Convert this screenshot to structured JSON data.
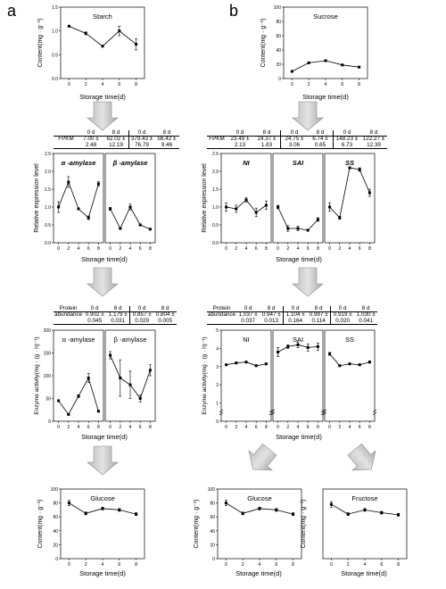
{
  "panels": {
    "a": "a",
    "b": "b"
  },
  "labels": {
    "content_axis": "Content(mg · g⁻¹)",
    "storage_axis": "Storage time(d)",
    "rel_expr_axis": "Relative expression level",
    "enzyme_axis": "Enzyme activity(mg · (g · h)⁻¹)",
    "fpkm": "FPKM",
    "protein": "Protein",
    "abundance": "abundance",
    "d0": "0 d",
    "d8": "8 d"
  },
  "tables": {
    "fpkm_a": [
      {
        "d0": "7.00 ±",
        "d0b": "2.48",
        "d8": "62.02 ±",
        "d8b": "12.19"
      },
      {
        "d0": "379.43 ±",
        "d0b": "76.79",
        "d8": "56.42 ±",
        "d8b": "9.46"
      }
    ],
    "fpkm_b": [
      {
        "d0": "23.49 ±",
        "d0b": "2.13",
        "d8": "24.37 ±",
        "d8b": "1.83"
      },
      {
        "d0": "24.75 ±",
        "d0b": "3.06",
        "d8": "6.74 ±",
        "d8b": "0.65"
      },
      {
        "d0": "148.23 ±",
        "d0b": "6.73",
        "d8": "122.27 ±",
        "d8b": "12.39"
      }
    ],
    "prot_a": [
      {
        "d0": "0.902 ±",
        "d0b": "0.045",
        "d8": "1.179 ±",
        "d8b": "0.031"
      },
      {
        "d0": "0.857 ±",
        "d0b": "0.029",
        "d8": "0.804 ±",
        "d8b": "0.005"
      }
    ],
    "prot_b": [
      {
        "d0": "1.037 ±",
        "d0b": "0.037",
        "d8": "0.947 ±",
        "d8b": "0.013"
      },
      {
        "d0": "1.104 ±",
        "d0b": "0.164",
        "d8": "0.997 ±",
        "d8b": "0.114"
      },
      {
        "d0": "0.919 ±",
        "d0b": "0.020",
        "d8": "1.030 ±",
        "d8b": "0.041"
      }
    ]
  },
  "chart_data": [
    {
      "id": "starch",
      "type": "line",
      "title": "Starch",
      "x": [
        0,
        2,
        4,
        6,
        8
      ],
      "values": [
        1.1,
        0.95,
        0.68,
        1.0,
        0.72
      ],
      "errors": [
        0.02,
        0.03,
        0.02,
        0.1,
        0.12
      ],
      "xlim": [
        -1,
        9
      ],
      "ylim": [
        0,
        1.5
      ],
      "yticks": [
        0,
        0.5,
        1,
        1.5
      ],
      "ytick_labels": [
        "0.0",
        "0.5",
        "1.0",
        "1.5"
      ],
      "xticks": [
        0,
        2,
        4,
        6,
        8
      ]
    },
    {
      "id": "sucrose",
      "type": "line",
      "title": "Sucrose",
      "x": [
        0,
        2,
        4,
        6,
        8
      ],
      "values": [
        10,
        22,
        25,
        19,
        16
      ],
      "errors": [
        1,
        1,
        1,
        1,
        1
      ],
      "xlim": [
        -1,
        9
      ],
      "ylim": [
        0,
        100
      ],
      "yticks": [
        0,
        20,
        40,
        60,
        80,
        100
      ],
      "ytick_labels": [
        "0",
        "20",
        "40",
        "60",
        "80",
        "100"
      ],
      "xticks": [
        0,
        2,
        4,
        6,
        8
      ]
    },
    {
      "id": "alpha_amylase_expr",
      "type": "line",
      "title": "α -amylase",
      "x": [
        0,
        2,
        4,
        6,
        8
      ],
      "values": [
        1.0,
        1.7,
        0.95,
        0.7,
        1.65
      ],
      "errors": [
        0.15,
        0.15,
        0.03,
        0.05,
        0.06
      ],
      "xlim": [
        -1,
        9
      ],
      "ylim": [
        0,
        2.5
      ],
      "yticks": [
        0,
        0.5,
        1,
        1.5,
        2,
        2.5
      ],
      "ytick_labels": [
        "0.0",
        "0.5",
        "1.0",
        "1.5",
        "2.0",
        "2.5"
      ],
      "xticks": [
        0,
        2,
        4,
        6,
        8
      ]
    },
    {
      "id": "beta_amylase_expr",
      "type": "line",
      "title": "β -amylase",
      "x": [
        0,
        2,
        4,
        6,
        8
      ],
      "values": [
        0.95,
        0.4,
        1.0,
        0.5,
        0.38
      ],
      "errors": [
        0.04,
        0.02,
        0.08,
        0.03,
        0.02
      ],
      "xlim": [
        -1,
        9
      ],
      "ylim": [
        0,
        2.5
      ],
      "yticks": [],
      "xticks": [
        0,
        2,
        4,
        6,
        8
      ]
    },
    {
      "id": "ni_expr",
      "type": "line",
      "title": "NI",
      "x": [
        0,
        2,
        4,
        6,
        8
      ],
      "values": [
        1.0,
        0.95,
        1.2,
        0.85,
        1.05
      ],
      "errors": [
        0.12,
        0.1,
        0.06,
        0.12,
        0.12
      ],
      "xlim": [
        -1,
        9
      ],
      "ylim": [
        0,
        2.5
      ],
      "yticks": [
        0,
        0.5,
        1,
        1.5,
        2,
        2.5
      ],
      "ytick_labels": [
        "0.0",
        "0.5",
        "1.0",
        "1.5",
        "2.0",
        "2.5"
      ],
      "xticks": [
        0,
        2,
        4,
        6,
        8
      ]
    },
    {
      "id": "sai_expr",
      "type": "line",
      "title": "SAI",
      "x": [
        0,
        2,
        4,
        6,
        8
      ],
      "values": [
        1.0,
        0.4,
        0.4,
        0.35,
        0.65
      ],
      "errors": [
        0.05,
        0.08,
        0.06,
        0.03,
        0.05
      ],
      "xlim": [
        -1,
        9
      ],
      "ylim": [
        0,
        2.5
      ],
      "yticks": [],
      "xticks": [
        0,
        2,
        4,
        6,
        8
      ]
    },
    {
      "id": "ss_expr",
      "type": "line",
      "title": "SS",
      "x": [
        0,
        2,
        4,
        6,
        8
      ],
      "values": [
        1.0,
        0.7,
        2.1,
        2.05,
        1.4
      ],
      "errors": [
        0.12,
        0.04,
        0.03,
        0.05,
        0.1
      ],
      "xlim": [
        -1,
        9
      ],
      "ylim": [
        0,
        2.5
      ],
      "yticks": [],
      "xticks": [
        0,
        2,
        4,
        6,
        8
      ]
    },
    {
      "id": "alpha_amylase_act",
      "type": "line",
      "title": "α -amylase",
      "x": [
        0,
        2,
        4,
        6,
        8
      ],
      "values": [
        45,
        15,
        55,
        95,
        22
      ],
      "errors": [
        2,
        2,
        3,
        10,
        2
      ],
      "xlim": [
        -1,
        9
      ],
      "ylim": [
        0,
        200
      ],
      "yticks": [
        0,
        50,
        100,
        150,
        200
      ],
      "ytick_labels": [
        "0",
        "50",
        "100",
        "150",
        "200"
      ],
      "xticks": [
        0,
        2,
        4,
        6,
        8
      ]
    },
    {
      "id": "beta_amylase_act",
      "type": "line",
      "title": "β -amylase",
      "x": [
        0,
        2,
        4,
        6,
        8
      ],
      "values": [
        145,
        95,
        80,
        50,
        112
      ],
      "errors": [
        8,
        40,
        30,
        8,
        12
      ],
      "xlim": [
        -1,
        9
      ],
      "ylim": [
        0,
        200
      ],
      "yticks": [],
      "xticks": [
        0,
        2,
        4,
        6,
        8
      ]
    },
    {
      "id": "ni_act",
      "type": "line",
      "title": "NI",
      "x": [
        0,
        2,
        4,
        6,
        8
      ],
      "values": [
        3.1,
        3.2,
        3.25,
        3.05,
        3.15
      ],
      "errors": [
        0.03,
        0.05,
        0.04,
        0.03,
        0.04
      ],
      "xlim": [
        -1,
        9
      ],
      "ylim": [
        0,
        5
      ],
      "yticks": [
        0,
        1,
        2,
        3,
        4,
        5
      ],
      "ytick_labels": [
        "0",
        "1",
        "2",
        "3",
        "4",
        "5"
      ],
      "xticks": [
        0,
        2,
        4,
        6,
        8
      ],
      "axis_break": true
    },
    {
      "id": "sai_act",
      "type": "line",
      "title": "SAI",
      "x": [
        0,
        2,
        4,
        6,
        8
      ],
      "values": [
        3.8,
        4.1,
        4.2,
        4.05,
        4.1
      ],
      "errors": [
        0.25,
        0.1,
        0.15,
        0.2,
        0.2
      ],
      "xlim": [
        -1,
        9
      ],
      "ylim": [
        0,
        5
      ],
      "yticks": [],
      "xticks": [
        0,
        2,
        4,
        6,
        8
      ],
      "axis_break": true
    },
    {
      "id": "ss_act",
      "type": "line",
      "title": "SS",
      "x": [
        0,
        2,
        4,
        6,
        8
      ],
      "values": [
        3.7,
        3.05,
        3.15,
        3.1,
        3.25
      ],
      "errors": [
        0.08,
        0.04,
        0.04,
        0.04,
        0.06
      ],
      "xlim": [
        -1,
        9
      ],
      "ylim": [
        0,
        5
      ],
      "yticks": [],
      "xticks": [
        0,
        2,
        4,
        6,
        8
      ],
      "axis_break": true
    },
    {
      "id": "glucose_a",
      "type": "line",
      "title": "Glucose",
      "x": [
        0,
        2,
        4,
        6,
        8
      ],
      "values": [
        80,
        65,
        72,
        70,
        64
      ],
      "errors": [
        4,
        2,
        2,
        2,
        2
      ],
      "xlim": [
        -1,
        9
      ],
      "ylim": [
        0,
        100
      ],
      "yticks": [
        0,
        20,
        40,
        60,
        80,
        100
      ],
      "ytick_labels": [
        "0",
        "20",
        "40",
        "60",
        "80",
        "100"
      ],
      "xticks": [
        0,
        2,
        4,
        6,
        8
      ]
    },
    {
      "id": "glucose_b",
      "type": "line",
      "title": "Glucose",
      "x": [
        0,
        2,
        4,
        6,
        8
      ],
      "values": [
        80,
        65,
        72,
        70,
        64
      ],
      "errors": [
        4,
        2,
        2,
        2,
        2
      ],
      "xlim": [
        -1,
        9
      ],
      "ylim": [
        0,
        100
      ],
      "yticks": [
        0,
        20,
        40,
        60,
        80,
        100
      ],
      "ytick_labels": [
        "0",
        "20",
        "40",
        "60",
        "80",
        "100"
      ],
      "xticks": [
        0,
        2,
        4,
        6,
        8
      ]
    },
    {
      "id": "fructose",
      "type": "line",
      "title": "Fructose",
      "x": [
        0,
        2,
        4,
        6,
        8
      ],
      "values": [
        78,
        64,
        70,
        66,
        63
      ],
      "errors": [
        4,
        2,
        2,
        2,
        2
      ],
      "xlim": [
        -1,
        9
      ],
      "ylim": [
        0,
        100
      ],
      "yticks": [],
      "xticks": [
        0,
        2,
        4,
        6,
        8
      ]
    }
  ]
}
